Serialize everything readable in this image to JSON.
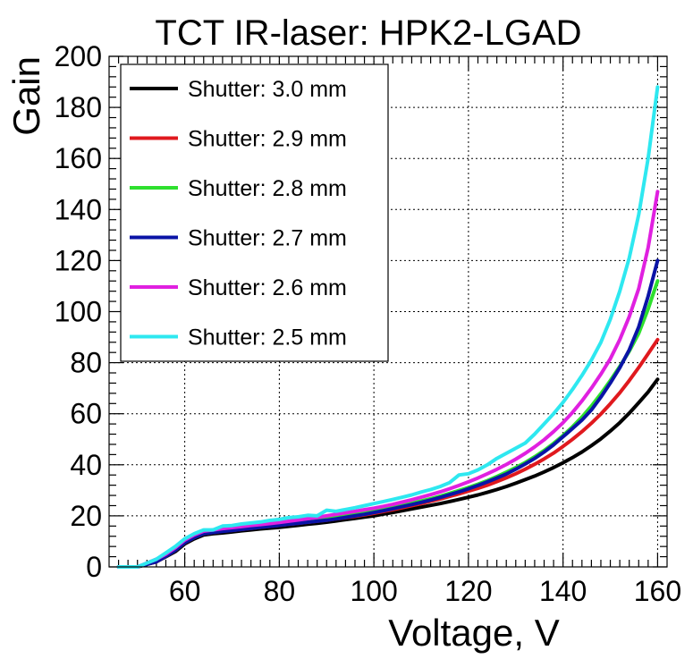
{
  "chart_data": {
    "type": "line",
    "title": "TCT IR-laser: HPK2-LGAD",
    "xlabel": "Voltage, V",
    "ylabel": "Gain",
    "xlim": [
      44,
      162
    ],
    "ylim": [
      0,
      200
    ],
    "xticks": [
      60,
      80,
      100,
      120,
      140,
      160
    ],
    "yticks": [
      0,
      20,
      40,
      60,
      80,
      100,
      120,
      140,
      160,
      180,
      200
    ],
    "grid": true,
    "legend_position": "top-left",
    "x": [
      46,
      48,
      50,
      52,
      54,
      56,
      58,
      60,
      62,
      64,
      66,
      68,
      70,
      72,
      74,
      76,
      78,
      80,
      82,
      84,
      86,
      88,
      90,
      92,
      94,
      96,
      98,
      100,
      102,
      104,
      106,
      108,
      110,
      112,
      114,
      116,
      118,
      120,
      122,
      124,
      126,
      128,
      130,
      132,
      134,
      136,
      138,
      140,
      142,
      144,
      146,
      148,
      150,
      152,
      154,
      156,
      158,
      160
    ],
    "series": [
      {
        "name": "Shutter: 3.0 mm",
        "color": "#000000",
        "values": [
          0,
          0,
          0,
          1,
          2,
          4,
          6,
          9,
          11,
          12.5,
          13,
          13.3,
          13.7,
          14.1,
          14.5,
          14.9,
          15.2,
          15.5,
          15.9,
          16.3,
          16.7,
          17.1,
          17.5,
          18,
          18.5,
          19,
          19.5,
          20,
          20.7,
          21.3,
          22,
          22.7,
          23.4,
          24.1,
          24.8,
          25.6,
          26.4,
          27.3,
          28.2,
          29.2,
          30.3,
          31.5,
          32.8,
          34.2,
          35.6,
          37.2,
          38.9,
          40.8,
          42.8,
          45,
          47.5,
          50.2,
          53.2,
          56.5,
          60.2,
          64.3,
          68.5,
          73.5
        ]
      },
      {
        "name": "Shutter: 2.9 mm",
        "color": "#e0191e",
        "values": [
          0,
          0,
          0,
          1,
          2,
          4.2,
          6.5,
          9.5,
          11.5,
          13,
          13.5,
          14,
          14.3,
          14.7,
          15.1,
          15.5,
          15.9,
          16.3,
          16.7,
          17.1,
          17.5,
          17.9,
          18.3,
          18.8,
          19.3,
          19.8,
          20.4,
          21,
          21.7,
          22.4,
          23.2,
          24,
          24.8,
          25.7,
          26.6,
          27.6,
          28.6,
          29.7,
          30.8,
          32,
          33.4,
          34.9,
          36.5,
          38.3,
          40.2,
          42.3,
          44.6,
          47.2,
          50,
          53,
          56.3,
          59.9,
          63.9,
          68.2,
          73,
          78.1,
          83.5,
          89
        ]
      },
      {
        "name": "Shutter: 2.8 mm",
        "color": "#2ee02e",
        "values": [
          0,
          0,
          0,
          1,
          2.2,
          4.5,
          7,
          10,
          12,
          13.5,
          14,
          14.5,
          14.8,
          15.2,
          15.6,
          16,
          16.4,
          16.8,
          17.2,
          17.6,
          18,
          18.4,
          18.9,
          19.4,
          19.9,
          20.5,
          21.1,
          21.8,
          22.5,
          23.2,
          24,
          24.9,
          25.8,
          26.7,
          27.7,
          28.8,
          29.9,
          31.1,
          32.4,
          33.8,
          35.4,
          37.1,
          38.9,
          40.9,
          43.1,
          45.6,
          48.4,
          51.5,
          54.9,
          58.7,
          63,
          67.8,
          73,
          78.5,
          84.5,
          91.5,
          101,
          112
        ]
      },
      {
        "name": "Shutter: 2.7 mm",
        "color": "#0a14a6",
        "values": [
          0,
          0,
          0,
          1,
          2,
          4.2,
          6.5,
          9.5,
          11.5,
          13,
          13.5,
          13.9,
          14.3,
          14.7,
          15.1,
          15.5,
          15.9,
          16.3,
          16.7,
          17.1,
          17.5,
          17.9,
          18.3,
          18.8,
          19.4,
          20,
          20.6,
          21.3,
          22,
          22.8,
          23.6,
          24.4,
          25.3,
          26.2,
          27.2,
          28.3,
          29.4,
          30.6,
          31.9,
          33.3,
          34.8,
          36.4,
          38.3,
          40.3,
          42.5,
          45,
          47.8,
          51,
          54.2,
          57.5,
          61.5,
          66.5,
          72,
          78,
          85,
          94,
          106,
          120
        ]
      },
      {
        "name": "Shutter: 2.6 mm",
        "color": "#e020e0",
        "values": [
          0,
          0,
          0,
          1.5,
          3,
          5,
          7.5,
          10.5,
          12.5,
          14,
          14.5,
          15,
          15.4,
          15.8,
          16.2,
          16.6,
          17,
          17.4,
          17.9,
          18.4,
          18.9,
          19.4,
          20,
          20.6,
          21.2,
          21.8,
          22.4,
          23,
          23.7,
          24.5,
          25.4,
          26.3,
          27.3,
          28.3,
          29.4,
          30.6,
          31.9,
          33.3,
          34.8,
          36.5,
          38.2,
          40.1,
          42.2,
          44.5,
          47,
          49.8,
          53,
          56.5,
          60.5,
          65,
          70,
          75.5,
          81.5,
          89,
          98,
          109,
          125,
          147
        ]
      },
      {
        "name": "Shutter: 2.5 mm",
        "color": "#2ee8f0",
        "values": [
          0,
          0,
          0,
          1.5,
          3,
          5.5,
          8,
          11,
          13,
          14.5,
          14.5,
          16,
          16.2,
          16.8,
          17.2,
          17.6,
          18.2,
          18.6,
          19.3,
          19.6,
          20.2,
          20,
          22.2,
          21.8,
          22.5,
          23.2,
          24,
          24.8,
          25.6,
          26.4,
          27.3,
          28.2,
          29.3,
          30.3,
          31.5,
          33,
          36,
          36.5,
          38,
          40,
          42.5,
          44.5,
          46.5,
          48.5,
          52,
          56,
          60,
          64.5,
          69.5,
          75,
          81,
          88,
          97,
          108,
          121,
          138,
          160,
          188
        ]
      }
    ]
  }
}
